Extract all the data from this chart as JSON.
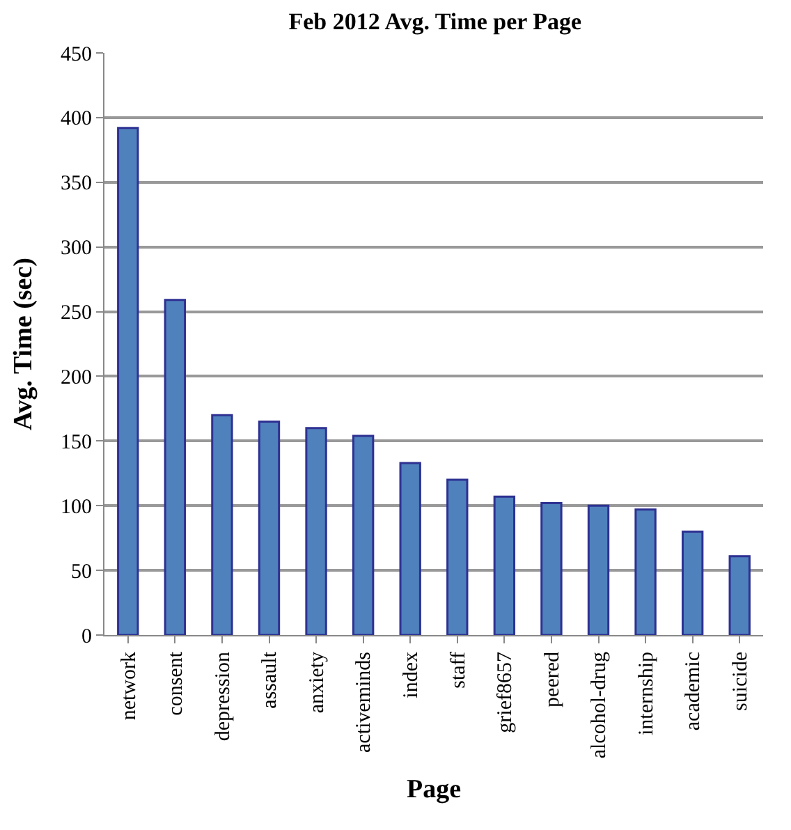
{
  "chart_data": {
    "type": "bar",
    "title": "Feb 2012 Avg. Time per Page",
    "xlabel": "Page",
    "ylabel": "Avg. Time (sec)",
    "categories": [
      "network",
      "consent",
      "depression",
      "assault",
      "anxiety",
      "activeminds",
      "index",
      "staff",
      "grief8657",
      "peered",
      "alcohol-drug",
      "internship",
      "academic",
      "suicide"
    ],
    "values": [
      392,
      259,
      170,
      165,
      160,
      154,
      133,
      120,
      107,
      102,
      100,
      97,
      80,
      61
    ],
    "color": "#4f81bd",
    "ylim": [
      0,
      450
    ],
    "yticks": [
      0,
      50,
      100,
      150,
      200,
      250,
      300,
      350,
      400,
      450
    ],
    "grid": "y",
    "legend": false
  }
}
